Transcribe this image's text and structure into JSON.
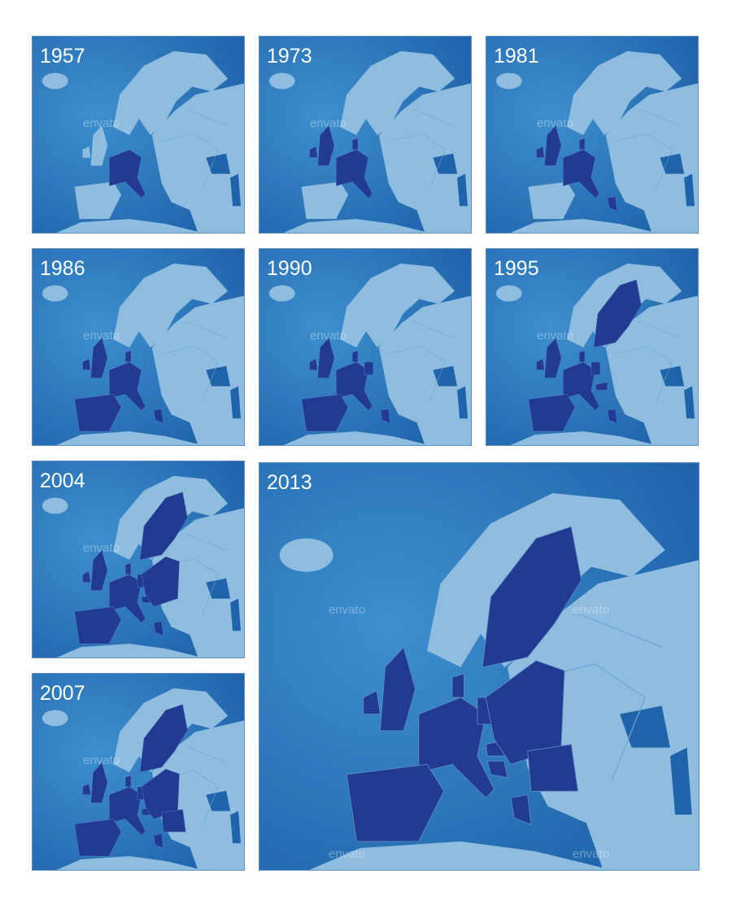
{
  "panels": [
    {
      "year": "1957"
    },
    {
      "year": "1973"
    },
    {
      "year": "1981"
    },
    {
      "year": "1986"
    },
    {
      "year": "1990"
    },
    {
      "year": "1995"
    },
    {
      "year": "2004"
    },
    {
      "year": "2007"
    },
    {
      "year": "2013"
    }
  ],
  "watermark": "envato"
}
